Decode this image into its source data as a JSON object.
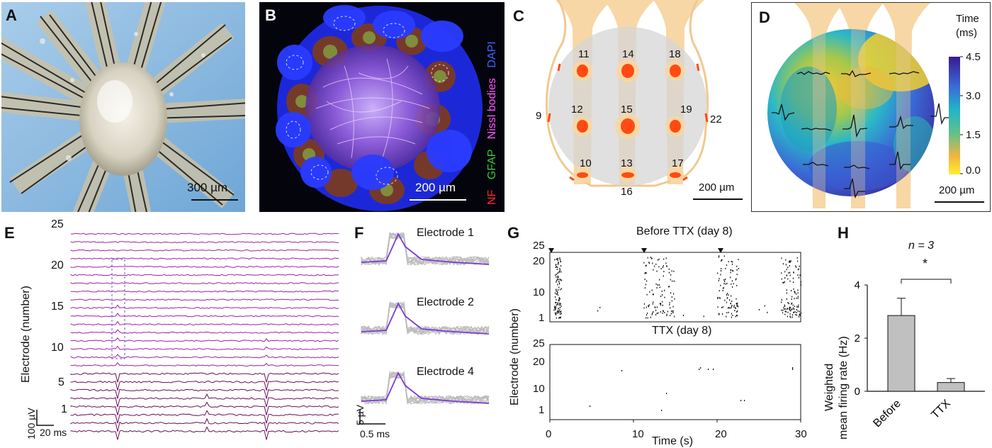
{
  "panels": {
    "A": {
      "label": "A",
      "scale": "300 µm"
    },
    "B": {
      "label": "B",
      "scale": "200 µm",
      "stains": {
        "dapi": "DAPI",
        "nissl": "Nissl bodies",
        "gfap": "GFAP",
        "nf": "NF"
      }
    },
    "C": {
      "label": "C",
      "scale": "200 µm",
      "electrodes": [
        "11",
        "14",
        "18",
        "12",
        "15",
        "19",
        "10",
        "13",
        "17",
        "9",
        "22",
        "16"
      ]
    },
    "D": {
      "label": "D",
      "scale": "200 µm",
      "colorbar_title_1": "Time",
      "colorbar_title_2": "(ms)",
      "colorbar_ticks": [
        "4.5",
        "3.0",
        "1.5",
        "0.0"
      ]
    },
    "E": {
      "label": "E",
      "yticks": [
        "25",
        "20",
        "15",
        "10",
        "5",
        "1"
      ],
      "ylabel": "Electrode  (number)",
      "scale_v": "100 µV",
      "scale_t": "20 ms"
    },
    "F": {
      "label": "F",
      "traces": [
        "Electrode 1",
        "Electrode 2",
        "Electrode 4"
      ],
      "scale_v": "5 µV",
      "scale_t": "0.5 ms"
    },
    "G": {
      "label": "G",
      "title_top": "Before TTX (day 8)",
      "title_bottom": "TTX (day 8)",
      "yticks_top": [
        "25",
        "20",
        "10",
        "1"
      ],
      "yticks_bottom": [
        "25",
        "20",
        "10",
        "1"
      ],
      "xticks": [
        "0",
        "10",
        "20",
        "30"
      ],
      "xlabel": "Time (s)",
      "ylabel": "Electrode  (number)"
    },
    "H": {
      "label": "H",
      "n_text": "n = 3",
      "sig": "*",
      "ylabel_1": "Weighted",
      "ylabel_2": "mean firing rate (Hz)",
      "yticks": [
        "0",
        "2",
        "4"
      ]
    }
  },
  "chart_data": [
    {
      "type": "bar",
      "categories": [
        "Before",
        "TTX"
      ],
      "values": [
        2.85,
        0.33
      ],
      "errors": [
        0.65,
        0.15
      ],
      "ylabel": "Weighted mean firing rate (Hz)",
      "ylim": [
        0,
        4
      ]
    }
  ]
}
